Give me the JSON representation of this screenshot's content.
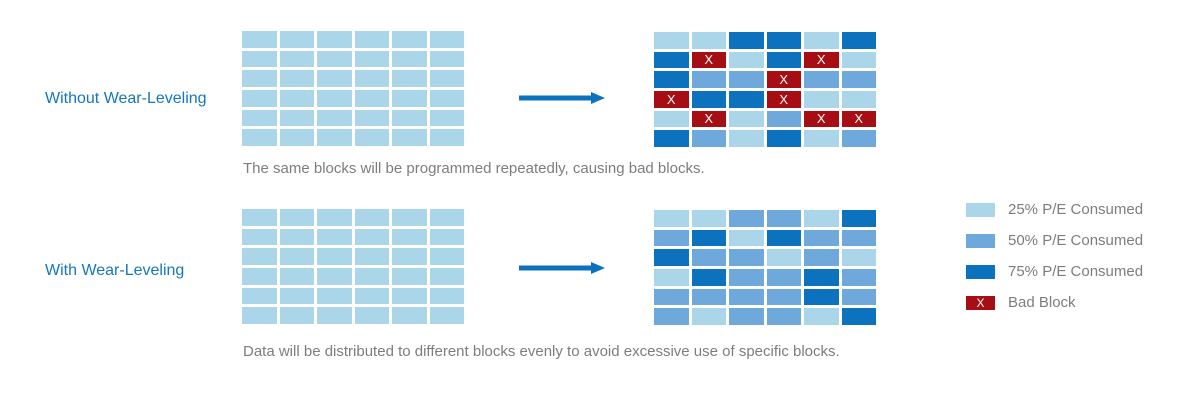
{
  "colors": {
    "pe25": "#ABD5E8",
    "pe50": "#6FA8DA",
    "pe75": "#0C72BD",
    "bad": "#A60E13",
    "heading": "#1377BE",
    "caption": "#7D7D7D",
    "arrow": "#0C72BD"
  },
  "mark": "X",
  "rows": [
    {
      "label": "Without Wear-Leveling",
      "caption": "The same blocks will be programmed repeatedly, causing bad blocks.",
      "before": [
        [
          "25",
          "25",
          "25",
          "25",
          "25",
          "25"
        ],
        [
          "25",
          "25",
          "25",
          "25",
          "25",
          "25"
        ],
        [
          "25",
          "25",
          "25",
          "25",
          "25",
          "25"
        ],
        [
          "25",
          "25",
          "25",
          "25",
          "25",
          "25"
        ],
        [
          "25",
          "25",
          "25",
          "25",
          "25",
          "25"
        ],
        [
          "25",
          "25",
          "25",
          "25",
          "25",
          "25"
        ]
      ],
      "after": [
        [
          "25",
          "25",
          "75",
          "75",
          "25",
          "75"
        ],
        [
          "75",
          "X",
          "25",
          "75",
          "X",
          "25"
        ],
        [
          "75",
          "50",
          "50",
          "X",
          "50",
          "50"
        ],
        [
          "X",
          "75",
          "75",
          "X",
          "25",
          "25"
        ],
        [
          "25",
          "X",
          "25",
          "50",
          "X",
          "X"
        ],
        [
          "75",
          "50",
          "25",
          "75",
          "25",
          "50"
        ]
      ]
    },
    {
      "label": "With Wear-Leveling",
      "caption": "Data will be distributed to different blocks evenly to avoid excessive use of specific blocks.",
      "before": [
        [
          "25",
          "25",
          "25",
          "25",
          "25",
          "25"
        ],
        [
          "25",
          "25",
          "25",
          "25",
          "25",
          "25"
        ],
        [
          "25",
          "25",
          "25",
          "25",
          "25",
          "25"
        ],
        [
          "25",
          "25",
          "25",
          "25",
          "25",
          "25"
        ],
        [
          "25",
          "25",
          "25",
          "25",
          "25",
          "25"
        ],
        [
          "25",
          "25",
          "25",
          "25",
          "25",
          "25"
        ]
      ],
      "after": [
        [
          "25",
          "25",
          "50",
          "50",
          "25",
          "75"
        ],
        [
          "50",
          "75",
          "25",
          "75",
          "50",
          "50"
        ],
        [
          "75",
          "50",
          "50",
          "25",
          "50",
          "25"
        ],
        [
          "25",
          "75",
          "50",
          "50",
          "75",
          "50"
        ],
        [
          "50",
          "50",
          "50",
          "50",
          "75",
          "50"
        ],
        [
          "50",
          "25",
          "50",
          "50",
          "25",
          "75"
        ]
      ]
    }
  ],
  "legend": [
    {
      "key": "pe25",
      "label": "25% P/E Consumed"
    },
    {
      "key": "pe50",
      "label": "50% P/E Consumed"
    },
    {
      "key": "pe75",
      "label": "75% P/E Consumed"
    },
    {
      "key": "bad",
      "label": "Bad Block"
    }
  ]
}
